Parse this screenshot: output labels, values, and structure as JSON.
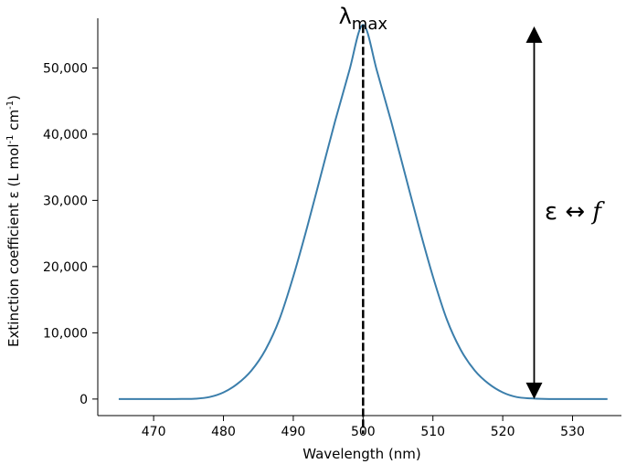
{
  "chart_data": {
    "type": "line",
    "xlabel": "Wavelength (nm)",
    "ylabel": "Extinction coefficient ε (L mol",
    "ylabel_sup1": "-1",
    "ylabel_mid": " cm",
    "ylabel_sup2": "-1",
    "ylabel_end": ")",
    "xlim": [
      462,
      537
    ],
    "ylim": [
      -2500,
      57500
    ],
    "xticks": [
      470,
      480,
      490,
      500,
      510,
      520,
      530
    ],
    "xtick_labels": [
      "470",
      "480",
      "490",
      "500",
      "510",
      "520",
      "530"
    ],
    "yticks": [
      0,
      10000,
      20000,
      30000,
      40000,
      50000
    ],
    "ytick_labels": [
      "0",
      "10,000",
      "20,000",
      "30,000",
      "40,000",
      "50,000"
    ],
    "grid": false,
    "series": [
      {
        "color": "#3b7eab",
        "x": [
          465,
          468,
          470,
          472,
          474,
          476,
          478,
          480,
          482,
          484,
          486,
          488,
          490,
          492,
          494,
          496,
          498,
          500,
          502,
          504,
          506,
          508,
          510,
          512,
          514,
          516,
          518,
          520,
          522,
          524,
          526,
          528,
          530,
          532,
          535
        ],
        "y": [
          0,
          0,
          0,
          0,
          10,
          50,
          300,
          1000,
          2300,
          4300,
          7400,
          12000,
          18500,
          26000,
          34000,
          42000,
          49500,
          56500,
          49500,
          42000,
          34000,
          26000,
          18500,
          12000,
          7400,
          4300,
          2300,
          1000,
          300,
          100,
          20,
          0,
          0,
          0,
          0
        ]
      }
    ],
    "annotations": {
      "lambda_symbol": "λ",
      "lambda_subscript": "max",
      "lambda_x": 500,
      "lambda_ymax": 56500,
      "arrow_x": 524.5,
      "arrow_y_top": 56000,
      "arrow_y_bottom": 0,
      "arrow_label_left": "ε ↔ ",
      "arrow_label_right": "f"
    }
  }
}
